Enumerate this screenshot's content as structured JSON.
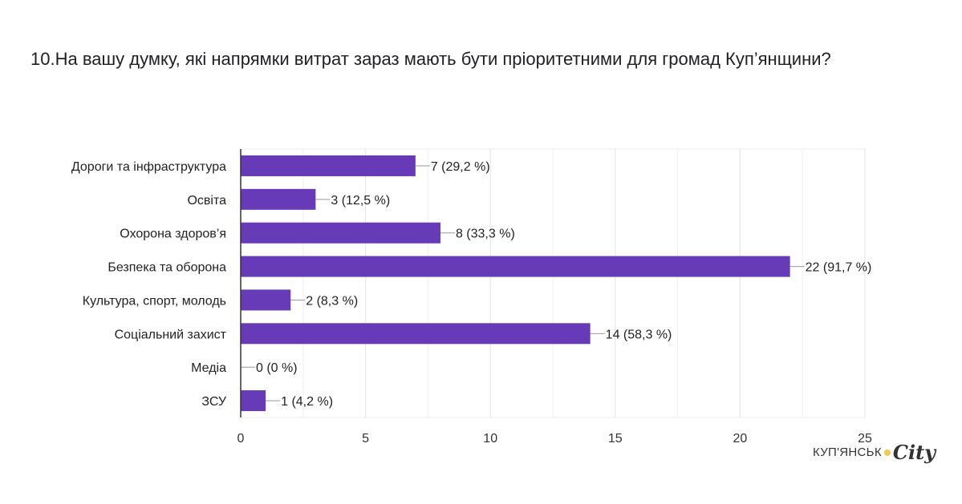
{
  "chart_data": {
    "type": "bar",
    "orientation": "horizontal",
    "title": "10.На вашу думку, які напрямки витрат зараз мають бути пріоритетними для громад Куп’янщини?",
    "categories": [
      "Дороги та інфраструктура",
      "Освіта",
      "Охорона здоров’я",
      "Безпека та оборона",
      "Культура, спорт, молодь",
      "Соціальний захист",
      "Медіа",
      "ЗСУ"
    ],
    "values": [
      7,
      3,
      8,
      22,
      2,
      14,
      0,
      1
    ],
    "data_labels": [
      "7 (29,2 %)",
      "3 (12,5 %)",
      "8 (33,3 %)",
      "22 (91,7 %)",
      "2 (8,3 %)",
      "14 (58,3 %)",
      "0 (0 %)",
      "1 (4,2 %)"
    ],
    "xlim": [
      0,
      25
    ],
    "x_ticks": [
      "0",
      "5",
      "10",
      "15",
      "20",
      "25"
    ],
    "grid": true,
    "color": "#673ab7"
  },
  "logo": {
    "text": "КУП'ЯНСЬК",
    "city": "City"
  }
}
